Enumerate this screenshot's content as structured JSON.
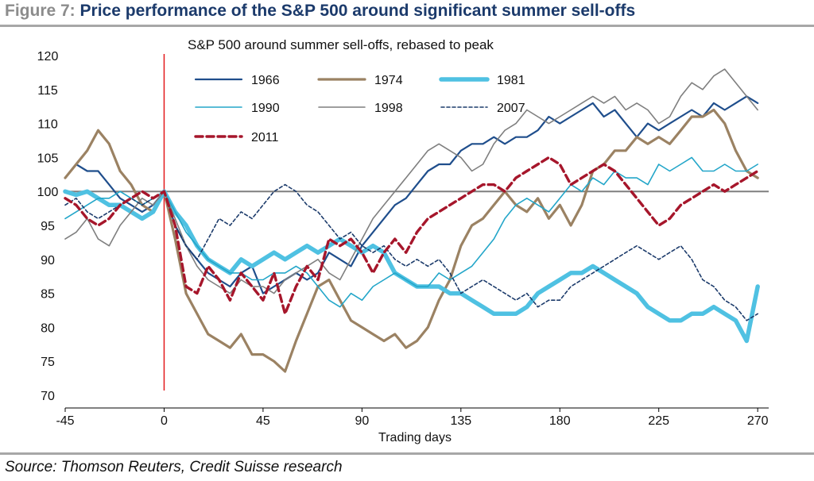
{
  "figure": {
    "prefix": "Figure 7:",
    "title": "Price performance of the S&P 500 around significant summer sell-offs",
    "source": "Source: Thomson Reuters, Credit Suisse research"
  },
  "chart_data": {
    "type": "line",
    "title": "S&P 500 around summer sell-offs, rebased to peak",
    "xlabel": "Trading days",
    "ylabel": "",
    "xlim": [
      -45,
      275
    ],
    "ylim": [
      70,
      120
    ],
    "xticks": [
      -45,
      0,
      45,
      90,
      135,
      180,
      225,
      270
    ],
    "yticks": [
      70,
      75,
      80,
      85,
      90,
      95,
      100,
      105,
      110,
      115,
      120
    ],
    "grid": false,
    "reference_lines": {
      "horizontal_at": 100,
      "horizontal_color": "#7f7f7f",
      "vertical_at": 0,
      "vertical_color": "#e31a1c"
    },
    "legend_position": "top",
    "series": [
      {
        "name": "1966",
        "color": "#1f4e8c",
        "style": "solid",
        "width": 2.2,
        "x": [
          -45,
          -40,
          -35,
          -30,
          -25,
          -20,
          -15,
          -10,
          -5,
          0,
          5,
          10,
          15,
          20,
          25,
          30,
          35,
          40,
          45,
          50,
          55,
          60,
          65,
          70,
          75,
          80,
          85,
          90,
          95,
          100,
          105,
          110,
          115,
          120,
          125,
          130,
          135,
          140,
          145,
          150,
          155,
          160,
          165,
          170,
          175,
          180,
          185,
          190,
          195,
          200,
          205,
          210,
          215,
          220,
          225,
          230,
          235,
          240,
          245,
          250,
          255,
          260,
          265,
          270
        ],
        "y": [
          102,
          104,
          103,
          103,
          101,
          99,
          98,
          97,
          98,
          100,
          95,
          92,
          90,
          88,
          87,
          86,
          88,
          89,
          85,
          86,
          87,
          88,
          87,
          88,
          91,
          90,
          89,
          92,
          94,
          96,
          98,
          99,
          101,
          103,
          104,
          104,
          106,
          107,
          107,
          108,
          107,
          108,
          108,
          109,
          111,
          110,
          111,
          112,
          113,
          111,
          112,
          110,
          108,
          110,
          109,
          110,
          111,
          112,
          111,
          113,
          112,
          113,
          114,
          113
        ]
      },
      {
        "name": "1974",
        "color": "#9b8263",
        "style": "solid",
        "width": 3.2,
        "x": [
          -45,
          -40,
          -35,
          -30,
          -25,
          -20,
          -15,
          -10,
          -5,
          0,
          5,
          10,
          15,
          20,
          25,
          30,
          35,
          40,
          45,
          50,
          55,
          60,
          65,
          70,
          75,
          80,
          85,
          90,
          95,
          100,
          105,
          110,
          115,
          120,
          125,
          130,
          135,
          140,
          145,
          150,
          155,
          160,
          165,
          170,
          175,
          180,
          185,
          190,
          195,
          200,
          205,
          210,
          215,
          220,
          225,
          230,
          235,
          240,
          245,
          250,
          255,
          260,
          265,
          270
        ],
        "y": [
          102,
          104,
          106,
          109,
          107,
          103,
          101,
          98,
          97,
          100,
          93,
          85,
          82,
          79,
          78,
          77,
          79,
          76,
          76,
          75,
          73.5,
          78,
          82,
          86,
          87,
          84,
          81,
          80,
          79,
          78,
          79,
          77,
          78,
          80,
          84,
          87,
          92,
          95,
          96,
          98,
          100,
          98,
          97,
          99,
          96,
          98,
          95,
          98,
          103,
          104,
          106,
          106,
          108,
          107,
          108,
          107,
          109,
          111,
          111,
          112,
          110,
          106,
          103,
          102
        ]
      },
      {
        "name": "1981",
        "color": "#4fc1e2",
        "style": "solid",
        "width": 5.5,
        "x": [
          -45,
          -40,
          -35,
          -30,
          -25,
          -20,
          -15,
          -10,
          -5,
          0,
          5,
          10,
          15,
          20,
          25,
          30,
          35,
          40,
          45,
          50,
          55,
          60,
          65,
          70,
          75,
          80,
          85,
          90,
          95,
          100,
          105,
          110,
          115,
          120,
          125,
          130,
          135,
          140,
          145,
          150,
          155,
          160,
          165,
          170,
          175,
          180,
          185,
          190,
          195,
          200,
          205,
          210,
          215,
          220,
          225,
          230,
          235,
          240,
          245,
          250,
          255,
          260,
          265,
          270
        ],
        "y": [
          100,
          99.5,
          100,
          99,
          98,
          98,
          97,
          96,
          97,
          100,
          97,
          95,
          92,
          90,
          89,
          88,
          90,
          89,
          90,
          91,
          90,
          91,
          92,
          91,
          92,
          93,
          92,
          91,
          92,
          91,
          88,
          87,
          86,
          86,
          86,
          85,
          85,
          84,
          83,
          82,
          82,
          82,
          83,
          85,
          86,
          87,
          88,
          88,
          89,
          88,
          87,
          86,
          85,
          83,
          82,
          81,
          81,
          82,
          82,
          83,
          82,
          81,
          78,
          86
        ]
      },
      {
        "name": "1990",
        "color": "#23a6c9",
        "style": "solid",
        "width": 1.6,
        "x": [
          -45,
          -40,
          -35,
          -30,
          -25,
          -20,
          -15,
          -10,
          -5,
          0,
          5,
          10,
          15,
          20,
          25,
          30,
          35,
          40,
          45,
          50,
          55,
          60,
          65,
          70,
          75,
          80,
          85,
          90,
          95,
          100,
          105,
          110,
          115,
          120,
          125,
          130,
          135,
          140,
          145,
          150,
          155,
          160,
          165,
          170,
          175,
          180,
          185,
          190,
          195,
          200,
          205,
          210,
          215,
          220,
          225,
          230,
          235,
          240,
          245,
          250,
          255,
          260,
          265,
          270
        ],
        "y": [
          96,
          97,
          98,
          99,
          99,
          100,
          99,
          98,
          99,
          100,
          97,
          94,
          92,
          90,
          89,
          88,
          88,
          87,
          87,
          88,
          88,
          89,
          88,
          86,
          84,
          83,
          85,
          84,
          86,
          87,
          88,
          87,
          86,
          86,
          88,
          87,
          88,
          89,
          91,
          93,
          96,
          98,
          99,
          98,
          97,
          99,
          101,
          100,
          102,
          101,
          103,
          102,
          102,
          101,
          104,
          103,
          104,
          105,
          103,
          103,
          104,
          103,
          103,
          104
        ]
      },
      {
        "name": "1998",
        "color": "#7f7f7f",
        "style": "solid",
        "width": 1.6,
        "x": [
          -45,
          -40,
          -35,
          -30,
          -25,
          -20,
          -15,
          -10,
          -5,
          0,
          5,
          10,
          15,
          20,
          25,
          30,
          35,
          40,
          45,
          50,
          55,
          60,
          65,
          70,
          75,
          80,
          85,
          90,
          95,
          100,
          105,
          110,
          115,
          120,
          125,
          130,
          135,
          140,
          145,
          150,
          155,
          160,
          165,
          170,
          175,
          180,
          185,
          190,
          195,
          200,
          205,
          210,
          215,
          220,
          225,
          230,
          235,
          240,
          245,
          250,
          255,
          260,
          265,
          270
        ],
        "y": [
          93,
          94,
          96,
          93,
          92,
          95,
          97,
          99,
          98,
          100,
          96,
          92,
          89,
          87,
          86,
          85,
          87,
          86,
          86,
          85,
          87,
          88,
          89,
          90,
          88,
          87,
          90,
          93,
          96,
          98,
          100,
          102,
          104,
          106,
          107,
          106,
          105,
          103,
          104,
          107,
          109,
          110,
          112,
          111,
          110,
          111,
          112,
          113,
          114,
          113,
          114,
          112,
          113,
          112,
          110,
          111,
          114,
          116,
          115,
          117,
          118,
          116,
          114,
          112
        ]
      },
      {
        "name": "2007",
        "color": "#1c3b6b",
        "style": "dash",
        "width": 1.6,
        "x": [
          -45,
          -40,
          -35,
          -30,
          -25,
          -20,
          -15,
          -10,
          -5,
          0,
          5,
          10,
          15,
          20,
          25,
          30,
          35,
          40,
          45,
          50,
          55,
          60,
          65,
          70,
          75,
          80,
          85,
          90,
          95,
          100,
          105,
          110,
          115,
          120,
          125,
          130,
          135,
          140,
          145,
          150,
          155,
          160,
          165,
          170,
          175,
          180,
          185,
          190,
          195,
          200,
          205,
          210,
          215,
          220,
          225,
          230,
          235,
          240,
          245,
          250,
          255,
          260,
          265,
          270
        ],
        "y": [
          98,
          99,
          97,
          96,
          97,
          98,
          99,
          98,
          99,
          100,
          95,
          92,
          90,
          93,
          96,
          95,
          97,
          96,
          98,
          100,
          101,
          100,
          98,
          97,
          95,
          93,
          94,
          92,
          91,
          92,
          90,
          89,
          90,
          89,
          90,
          88,
          85,
          86,
          87,
          86,
          85,
          84,
          85,
          83,
          84,
          84,
          86,
          87,
          88,
          89,
          90,
          91,
          92,
          91,
          90,
          91,
          92,
          90,
          87,
          86,
          84,
          83,
          81,
          82
        ]
      },
      {
        "name": "2011",
        "color": "#a6162b",
        "style": "dash",
        "width": 3.4,
        "x": [
          -45,
          -40,
          -35,
          -30,
          -25,
          -20,
          -15,
          -10,
          -5,
          0,
          5,
          10,
          15,
          20,
          25,
          30,
          35,
          40,
          45,
          50,
          55,
          60,
          65,
          70,
          75,
          80,
          85,
          90,
          95,
          100,
          105,
          110,
          115,
          120,
          125,
          130,
          135,
          140,
          145,
          150,
          155,
          160,
          165,
          170,
          175,
          180,
          185,
          190,
          195,
          200,
          205,
          210,
          215,
          220,
          225,
          230,
          235,
          240,
          245,
          250,
          255,
          260,
          265,
          270
        ],
        "y": [
          99,
          98,
          96,
          95,
          96,
          98,
          99,
          100,
          99,
          100,
          95,
          86,
          85,
          89,
          87,
          84,
          88,
          86,
          84,
          88,
          82,
          86,
          89,
          87,
          93,
          92,
          93,
          91,
          88,
          91,
          93,
          91,
          94,
          96,
          97,
          98,
          99,
          100,
          101,
          101,
          100,
          102,
          103,
          104,
          105,
          104,
          101,
          102,
          103,
          104,
          103,
          101,
          99,
          97,
          95,
          96,
          98,
          99,
          100,
          101,
          100,
          101,
          102,
          103
        ]
      }
    ]
  }
}
